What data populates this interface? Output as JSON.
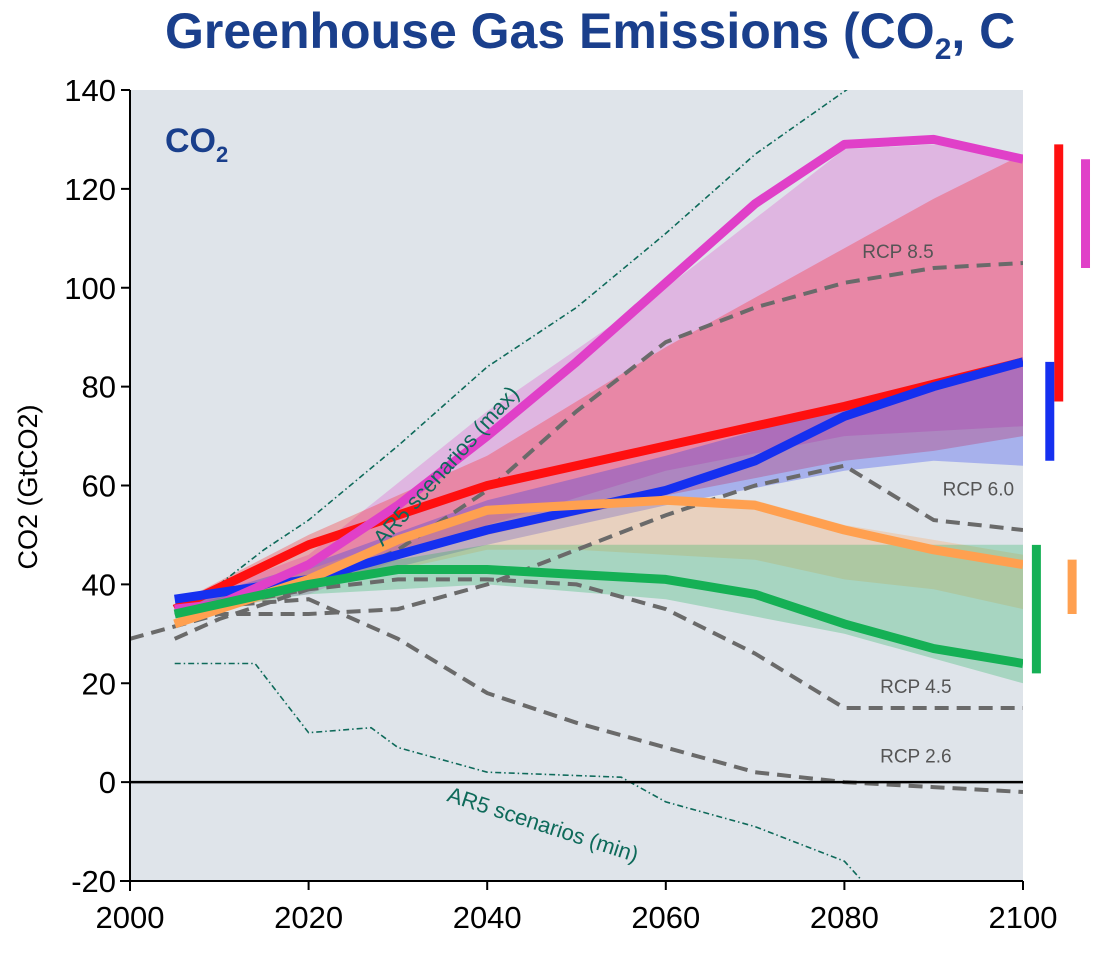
{
  "page": {
    "title_main": "Greenhouse Gas Emissions (CO",
    "title_sub": "2",
    "title_tail": ", C"
  },
  "colors": {
    "title": "#1a3f8c",
    "plot_bg": "#dfe4ea",
    "red": "#ff0f0f",
    "blue": "#1530f0",
    "magenta": "#e040c8",
    "orange": "#ffa050",
    "green": "#15b055",
    "rcp_dash": "#6a6a6a",
    "ar5": "#0e6a5a"
  },
  "chart_data": {
    "type": "line",
    "xlabel": "",
    "ylabel": "CO2 (GtCO2)",
    "panel_label": "CO",
    "panel_label_sub": "2",
    "xlim": [
      2000,
      2100
    ],
    "ylim": [
      -20,
      140
    ],
    "xticks": [
      2000,
      2020,
      2040,
      2060,
      2080,
      2100
    ],
    "yticks": [
      -20,
      0,
      20,
      40,
      60,
      80,
      100,
      120,
      140
    ],
    "grid": false,
    "legend": "none",
    "bands": [
      {
        "color": "magenta",
        "x": [
          2005,
          2020,
          2040,
          2060,
          2080,
          2090,
          2100
        ],
        "upper": [
          36,
          46,
          75,
          100,
          128,
          129,
          127
        ],
        "lower": [
          35,
          38,
          52,
          63,
          70,
          71,
          72
        ]
      },
      {
        "color": "red",
        "x": [
          2005,
          2020,
          2040,
          2060,
          2080,
          2090,
          2100
        ],
        "upper": [
          36,
          50,
          66,
          88,
          108,
          118,
          127
        ],
        "lower": [
          34,
          41,
          50,
          58,
          65,
          67,
          70
        ]
      },
      {
        "color": "blue",
        "x": [
          2005,
          2020,
          2040,
          2060,
          2080,
          2090,
          2100
        ],
        "upper": [
          36,
          44,
          57,
          66,
          76,
          80,
          86
        ],
        "lower": [
          35,
          39,
          48,
          56,
          63,
          65,
          64
        ]
      },
      {
        "color": "orange",
        "x": [
          2005,
          2020,
          2040,
          2050,
          2060,
          2070,
          2080,
          2090,
          2100
        ],
        "upper": [
          33,
          43,
          55,
          57,
          58,
          57,
          52,
          49,
          46
        ],
        "lower": [
          32,
          39,
          47,
          47,
          46,
          45,
          41,
          39,
          35
        ]
      },
      {
        "color": "green",
        "x": [
          2005,
          2020,
          2040,
          2060,
          2080,
          2100
        ],
        "upper": [
          35,
          42,
          48,
          48,
          48,
          48
        ],
        "lower": [
          34,
          38,
          40,
          37,
          30,
          20
        ]
      }
    ],
    "series": [
      {
        "color": "red",
        "x": [
          2005,
          2020,
          2040,
          2060,
          2080,
          2100
        ],
        "y": [
          35,
          48,
          60,
          68,
          76,
          85
        ]
      },
      {
        "color": "blue",
        "x": [
          2005,
          2020,
          2040,
          2060,
          2070,
          2080,
          2090,
          2100
        ],
        "y": [
          37,
          41,
          51,
          59,
          65,
          74,
          80,
          85
        ]
      },
      {
        "color": "magenta",
        "x": [
          2005,
          2010,
          2020,
          2030,
          2040,
          2050,
          2060,
          2070,
          2080,
          2090,
          2100
        ],
        "y": [
          35,
          36,
          44,
          56,
          70,
          85,
          101,
          117,
          129,
          130,
          126
        ]
      },
      {
        "color": "orange",
        "x": [
          2005,
          2020,
          2030,
          2040,
          2050,
          2060,
          2070,
          2080,
          2090,
          2100
        ],
        "y": [
          32,
          41,
          49,
          55,
          56,
          57,
          56,
          51,
          47,
          44
        ]
      },
      {
        "color": "green",
        "x": [
          2005,
          2020,
          2030,
          2040,
          2050,
          2060,
          2070,
          2080,
          2090,
          2100
        ],
        "y": [
          34,
          40,
          43,
          43,
          42,
          41,
          38,
          32,
          27,
          24
        ]
      }
    ],
    "rcp": [
      {
        "label": "RCP 8.5",
        "label_at": [
          2086,
          106
        ],
        "x": [
          2005,
          2010,
          2020,
          2030,
          2040,
          2050,
          2060,
          2070,
          2080,
          2090,
          2100
        ],
        "y": [
          29,
          33,
          39,
          47,
          59,
          75,
          89,
          96,
          101,
          104,
          105
        ]
      },
      {
        "label": "RCP 6.0",
        "label_at": [
          2095,
          58
        ],
        "x": [
          2000,
          2010,
          2020,
          2030,
          2040,
          2050,
          2060,
          2070,
          2080,
          2090,
          2100
        ],
        "y": [
          29,
          34,
          34,
          35,
          40,
          47,
          54,
          60,
          64,
          53,
          51
        ]
      },
      {
        "label": "RCP 4.5",
        "label_at": [
          2088,
          18
        ],
        "x": [
          2005,
          2020,
          2030,
          2040,
          2050,
          2060,
          2070,
          2080,
          2090,
          2100
        ],
        "y": [
          34,
          39,
          41,
          41,
          40,
          35,
          26,
          15,
          15,
          15
        ]
      },
      {
        "label": "RCP 2.6",
        "label_at": [
          2088,
          4
        ],
        "x": [
          2005,
          2020,
          2030,
          2040,
          2050,
          2060,
          2070,
          2080,
          2090,
          2100
        ],
        "y": [
          35,
          37,
          29,
          18,
          12,
          7,
          2,
          0,
          -1,
          -2
        ]
      }
    ],
    "ar5": [
      {
        "label": "AR5 scenarios (max)",
        "label_at": [
          2036,
          63
        ],
        "label_angle": -48,
        "x": [
          2005,
          2010,
          2015,
          2020,
          2030,
          2040,
          2050,
          2060,
          2070,
          2081
        ],
        "y": [
          34,
          40,
          47,
          53,
          68,
          84,
          96,
          111,
          127,
          141
        ]
      },
      {
        "label": "AR5 scenarios (min)",
        "label_at": [
          2046,
          -10
        ],
        "label_angle": 18,
        "x": [
          2005,
          2010,
          2014,
          2020,
          2027,
          2030,
          2040,
          2055,
          2060,
          2070,
          2080,
          2082
        ],
        "y": [
          24,
          24,
          24,
          10,
          11,
          7,
          2,
          1,
          -4,
          -9,
          -16,
          -20
        ]
      }
    ],
    "range_bars": [
      {
        "color": "red",
        "x": 2104,
        "y": [
          77,
          129
        ]
      },
      {
        "color": "magenta",
        "x": 2107,
        "y": [
          104,
          126
        ]
      },
      {
        "color": "blue",
        "x": 2103,
        "y": [
          65,
          85
        ]
      },
      {
        "color": "green",
        "x": 2101.5,
        "y": [
          22,
          48
        ]
      },
      {
        "color": "orange",
        "x": 2105.5,
        "y": [
          34,
          45
        ]
      }
    ]
  }
}
